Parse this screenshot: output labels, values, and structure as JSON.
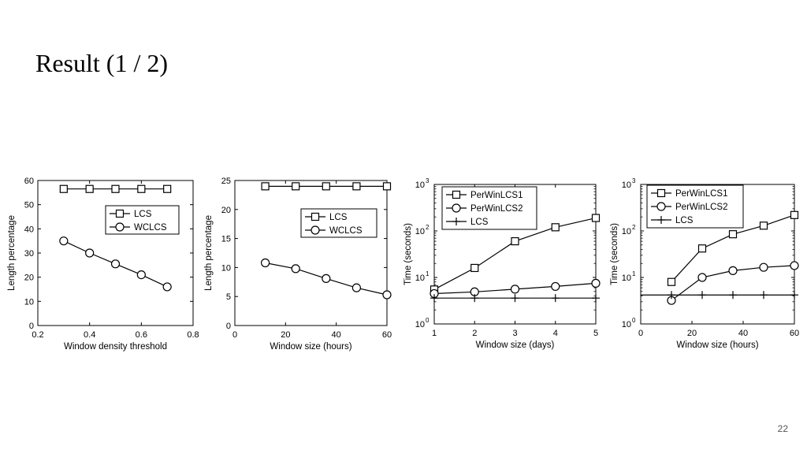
{
  "slide": {
    "title": "Result (1 / 2)",
    "page_number": "22"
  },
  "chart_data": [
    {
      "type": "line",
      "title": "",
      "xlabel": "Window density threshold",
      "ylabel": "Length percentage",
      "xlim": [
        0.2,
        0.8
      ],
      "ylim": [
        0,
        60
      ],
      "yscale": "linear",
      "xticks": [
        0.2,
        0.4,
        0.6,
        0.8
      ],
      "xtick_labels": [
        "0.2",
        "0.4",
        "0.6",
        "0.8"
      ],
      "yticks": [
        0,
        10,
        20,
        30,
        40,
        50,
        60
      ],
      "ytick_labels": [
        "0",
        "10",
        "20",
        "30",
        "40",
        "50",
        "60"
      ],
      "grid": false,
      "legend_position": "right-middle",
      "series": [
        {
          "name": "LCS",
          "marker": "square",
          "x": [
            0.3,
            0.4,
            0.5,
            0.6,
            0.7
          ],
          "y": [
            56.5,
            56.5,
            56.5,
            56.5,
            56.5
          ]
        },
        {
          "name": "WCLCS",
          "marker": "circle",
          "x": [
            0.3,
            0.4,
            0.5,
            0.6,
            0.7
          ],
          "y": [
            35,
            30,
            25.5,
            21,
            16
          ]
        }
      ]
    },
    {
      "type": "line",
      "title": "",
      "xlabel": "Window size (hours)",
      "ylabel": "Length percentage",
      "xlim": [
        0,
        60
      ],
      "ylim": [
        0,
        25
      ],
      "yscale": "linear",
      "xticks": [
        0,
        20,
        40,
        60
      ],
      "xtick_labels": [
        "0",
        "20",
        "40",
        "60"
      ],
      "yticks": [
        0,
        5,
        10,
        15,
        20,
        25
      ],
      "ytick_labels": [
        "0",
        "5",
        "10",
        "15",
        "20",
        "25"
      ],
      "grid": false,
      "legend_position": "right-middle",
      "series": [
        {
          "name": "LCS",
          "marker": "square",
          "x": [
            12,
            24,
            36,
            48,
            60
          ],
          "y": [
            24,
            24,
            24,
            24,
            24
          ]
        },
        {
          "name": "WCLCS",
          "marker": "circle",
          "x": [
            12,
            24,
            36,
            48,
            60
          ],
          "y": [
            10.8,
            9.8,
            8.1,
            6.5,
            5.3
          ]
        }
      ]
    },
    {
      "type": "line",
      "title": "",
      "xlabel": "Window size (days)",
      "ylabel": "Time (seconds)",
      "xlim": [
        1,
        5
      ],
      "ylim": [
        1,
        1000
      ],
      "yscale": "log",
      "xticks": [
        1,
        2,
        3,
        4,
        5
      ],
      "xtick_labels": [
        "1",
        "2",
        "3",
        "4",
        "5"
      ],
      "yticks": [
        1,
        10,
        100,
        1000
      ],
      "ytick_labels": [
        "10",
        "10",
        "10",
        "10"
      ],
      "ytick_exponents": [
        "0",
        "1",
        "2",
        "3"
      ],
      "grid": false,
      "legend_position": "top-left",
      "series": [
        {
          "name": "PerWinLCS1",
          "marker": "square",
          "x": [
            1,
            2,
            3,
            4,
            5
          ],
          "y": [
            5.5,
            16,
            60,
            120,
            190
          ]
        },
        {
          "name": "PerWinLCS2",
          "marker": "circle",
          "x": [
            1,
            2,
            3,
            4,
            5
          ],
          "y": [
            4.5,
            4.9,
            5.6,
            6.4,
            7.5
          ]
        },
        {
          "name": "LCS",
          "marker": "plus",
          "x": [
            1,
            2,
            3,
            4,
            5
          ],
          "y": [
            3.6,
            3.6,
            3.6,
            3.6,
            3.6
          ]
        }
      ]
    },
    {
      "type": "line",
      "title": "",
      "xlabel": "Window size (hours)",
      "ylabel": "Time (seconds)",
      "xlim": [
        0,
        60
      ],
      "ylim": [
        1,
        1000
      ],
      "yscale": "log",
      "xticks": [
        0,
        20,
        40,
        60
      ],
      "xtick_labels": [
        "0",
        "20",
        "40",
        "60"
      ],
      "yticks": [
        1,
        10,
        100,
        1000
      ],
      "ytick_labels": [
        "10",
        "10",
        "10",
        "10"
      ],
      "ytick_exponents": [
        "0",
        "1",
        "2",
        "3"
      ],
      "grid": false,
      "legend_position": "top-left",
      "series": [
        {
          "name": "PerWinLCS1",
          "marker": "square",
          "x": [
            12,
            24,
            36,
            48,
            60
          ],
          "y": [
            8,
            42,
            85,
            130,
            220
          ]
        },
        {
          "name": "PerWinLCS2",
          "marker": "circle",
          "x": [
            12,
            24,
            36,
            48,
            60
          ],
          "y": [
            3.2,
            10,
            14,
            16.5,
            18
          ]
        },
        {
          "name": "LCS",
          "marker": "plus",
          "x": [
            12,
            24,
            36,
            48,
            60
          ],
          "y": [
            4.2,
            4.2,
            4.2,
            4.2,
            4.2
          ]
        }
      ]
    }
  ]
}
